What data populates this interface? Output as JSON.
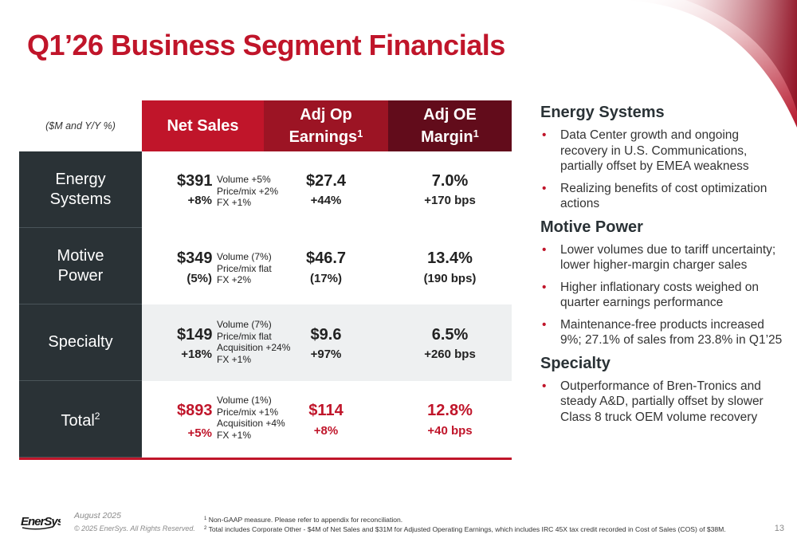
{
  "title": "Q1’26 Business Segment Financials",
  "table": {
    "units_label": "($M and Y/Y %)",
    "headers": {
      "net_sales": "Net Sales",
      "adj_op_line1": "Adj Op",
      "adj_op_line2": "Earnings",
      "adj_op_sup": "1",
      "adj_margin_line1": "Adj OE",
      "adj_margin_line2": "Margin",
      "adj_margin_sup": "1"
    },
    "rows": [
      {
        "label_line1": "Energy",
        "label_line2": "Systems",
        "sales": "$391",
        "sales_pct": "+8%",
        "drivers": [
          "Volume +5%",
          "Price/mix +2%",
          "FX +1%"
        ],
        "op": "$27.4",
        "op_pct": "+44%",
        "margin": "7.0%",
        "margin_chg": "+170 bps"
      },
      {
        "label_line1": "Motive",
        "label_line2": "Power",
        "sales": "$349",
        "sales_pct": "(5%)",
        "drivers": [
          "Volume (7%)",
          "Price/mix flat",
          "FX +2%"
        ],
        "op": "$46.7",
        "op_pct": "(17%)",
        "margin": "13.4%",
        "margin_chg": "(190 bps)"
      },
      {
        "label_line1": "Specialty",
        "sales": "$149",
        "sales_pct": "+18%",
        "drivers": [
          "Volume (7%)",
          "Price/mix flat",
          "Acquisition +24%",
          "FX +1%"
        ],
        "op": "$9.6",
        "op_pct": "+97%",
        "margin": "6.5%",
        "margin_chg": "+260 bps"
      },
      {
        "label_line1": "Total",
        "label_sup": "2",
        "sales": "$893",
        "sales_pct": "+5%",
        "drivers": [
          "Volume (1%)",
          "Price/mix +1%",
          "Acquisition +4%",
          "FX +1%"
        ],
        "op": "$114",
        "op_pct": "+8%",
        "margin": "12.8%",
        "margin_chg": "+40 bps"
      }
    ]
  },
  "commentary": [
    {
      "title": "Energy Systems",
      "bullets": [
        "Data Center growth and ongoing recovery in U.S. Communications, partially offset by EMEA weakness",
        "Realizing benefits of cost optimization actions"
      ]
    },
    {
      "title": "Motive Power",
      "bullets": [
        "Lower volumes due to tariff uncertainty; lower higher-margin charger sales",
        "Higher inflationary costs weighed on quarter earnings performance",
        "Maintenance-free products increased 9%; 27.1% of sales from 23.8% in Q1’25"
      ]
    },
    {
      "title": "Specialty",
      "bullets": [
        "Outperformance of Bren-Tronics and steady A&D, partially offset by slower Class 8 truck OEM volume recovery"
      ]
    }
  ],
  "footer": {
    "logo_text": "EnerSys",
    "date": "August 2025",
    "copyright": "© 2025 EnerSys. All Rights Reserved.",
    "note1_sup": "1",
    "note1": "Non-GAAP measure. Please refer to appendix for reconciliation.",
    "note2_sup": "2",
    "note2": "Total includes Corporate Other - $4M of Net Sales and $31M for Adjusted Operating Earnings, which includes IRC 45X tax credit recorded in Cost of Sales (COS) of $38M.",
    "page_number": "13"
  },
  "colors": {
    "brand_red": "#c0152a",
    "mid_red": "#9c1424",
    "dark_red": "#620c1b",
    "row_label_bg": "#2a3236",
    "alt_row_bg": "#eef0f1"
  }
}
